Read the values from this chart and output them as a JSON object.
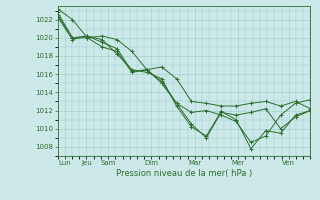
{
  "title": "Pression niveau de la mer( hPa )",
  "ylabel_ticks": [
    1008,
    1010,
    1012,
    1014,
    1016,
    1018,
    1020,
    1022
  ],
  "ylim": [
    1007.0,
    1023.5
  ],
  "xlabels": [
    "Lun",
    "Jeu",
    "Sam",
    "Dim",
    "Mar",
    "Mer",
    "Ven"
  ],
  "bg_color": "#cce8e8",
  "grid_color": "#99cccc",
  "line_color": "#2d6e2d",
  "lines": [
    [
      1023.2,
      1022.0,
      1020.0,
      1020.2,
      1019.8,
      1018.5,
      1016.5,
      1016.8,
      1015.5,
      1013.0,
      1012.8,
      1012.5,
      1012.5,
      1012.8,
      1013.0,
      1012.5,
      1013.0,
      1012.2
    ],
    [
      1022.8,
      1020.0,
      1020.2,
      1019.5,
      1018.8,
      1016.3,
      1016.5,
      1015.0,
      1012.8,
      1010.5,
      1009.0,
      1011.8,
      1011.5,
      1011.8,
      1012.2,
      1010.0,
      1011.3,
      1012.0
    ],
    [
      1022.5,
      1020.0,
      1020.0,
      1019.0,
      1018.5,
      1016.2,
      1016.5,
      1015.2,
      1012.8,
      1011.8,
      1012.0,
      1011.5,
      1010.8,
      1008.5,
      1009.2,
      1011.5,
      1012.8,
      1013.2
    ],
    [
      1022.3,
      1019.8,
      1020.2,
      1019.8,
      1018.2,
      1016.5,
      1016.2,
      1015.5,
      1012.5,
      1010.2,
      1009.2,
      1011.9,
      1011.0,
      1007.8,
      1009.8,
      1009.5,
      1011.5,
      1012.0
    ]
  ],
  "num_points": 18,
  "day_x_positions": [
    0.5,
    2.0,
    3.5,
    6.5,
    9.5,
    12.5,
    16.0
  ],
  "xlim": [
    0,
    17.5
  ]
}
